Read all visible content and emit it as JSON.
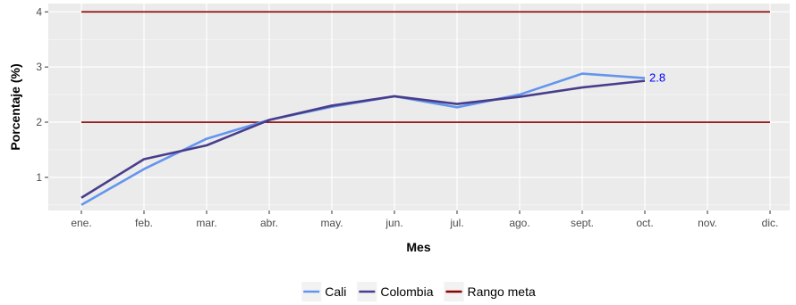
{
  "chart_data": {
    "type": "line",
    "title": "",
    "xlabel": "Mes",
    "ylabel": "Porcentaje (%)",
    "categories": [
      "ene.",
      "feb.",
      "mar.",
      "abr.",
      "may.",
      "jun.",
      "jul.",
      "ago.",
      "sept.",
      "oct.",
      "nov.",
      "dic."
    ],
    "ylim": [
      0.4,
      4.15
    ],
    "yticks": [
      1,
      2,
      3,
      4
    ],
    "ytick_labels": [
      "1",
      "2",
      "3",
      "4"
    ],
    "grid": true,
    "legend_position": "bottom",
    "series": [
      {
        "name": "Cali",
        "color": "#6495ED",
        "values": [
          0.5,
          1.15,
          1.7,
          2.04,
          2.28,
          2.47,
          2.27,
          2.5,
          2.88,
          2.8,
          null,
          null
        ]
      },
      {
        "name": "Colombia",
        "color": "#483D8B",
        "values": [
          0.63,
          1.33,
          1.58,
          2.04,
          2.3,
          2.47,
          2.33,
          2.46,
          2.63,
          2.75,
          null,
          null
        ]
      }
    ],
    "reference_lines": [
      {
        "name": "Rango meta",
        "color": "#8B0000",
        "values": [
          2,
          4
        ]
      }
    ],
    "annotations": [
      {
        "category": "oct.",
        "value": 2.8,
        "text": "2.8",
        "color": "#0000FF"
      }
    ]
  }
}
